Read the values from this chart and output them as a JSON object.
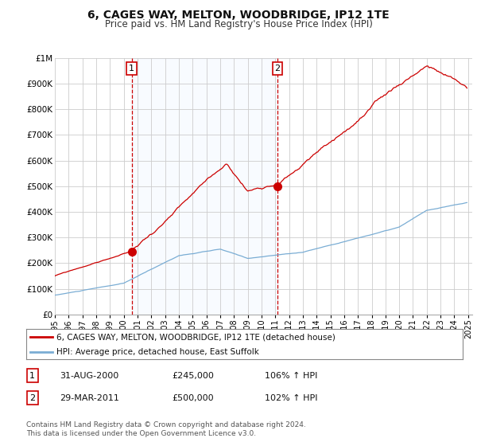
{
  "title": "6, CAGES WAY, MELTON, WOODBRIDGE, IP12 1TE",
  "subtitle": "Price paid vs. HM Land Registry's House Price Index (HPI)",
  "title_fontsize": 10,
  "subtitle_fontsize": 8.5,
  "background_color": "#ffffff",
  "grid_color": "#cccccc",
  "ylim": [
    0,
    1000000
  ],
  "yticks": [
    0,
    100000,
    200000,
    300000,
    400000,
    500000,
    600000,
    700000,
    800000,
    900000,
    1000000
  ],
  "ytick_labels": [
    "£0",
    "£100K",
    "£200K",
    "£300K",
    "£400K",
    "£500K",
    "£600K",
    "£700K",
    "£800K",
    "£900K",
    "£1M"
  ],
  "sale1_year": 2000,
  "sale1_month": 8,
  "sale1_price": 245000,
  "sale2_year": 2011,
  "sale2_month": 3,
  "sale2_price": 500000,
  "legend_line1": "6, CAGES WAY, MELTON, WOODBRIDGE, IP12 1TE (detached house)",
  "legend_line2": "HPI: Average price, detached house, East Suffolk",
  "table_row1": [
    "1",
    "31-AUG-2000",
    "£245,000",
    "106% ↑ HPI"
  ],
  "table_row2": [
    "2",
    "29-MAR-2011",
    "£500,000",
    "102% ↑ HPI"
  ],
  "footnote": "Contains HM Land Registry data © Crown copyright and database right 2024.\nThis data is licensed under the Open Government Licence v3.0.",
  "line_color_red": "#cc0000",
  "line_color_blue": "#7aadd4",
  "shade_color": "#ddeeff",
  "marker_color_red": "#cc0000",
  "annot_box_color": "#ffffff",
  "annot_box_edge": "#cc0000"
}
